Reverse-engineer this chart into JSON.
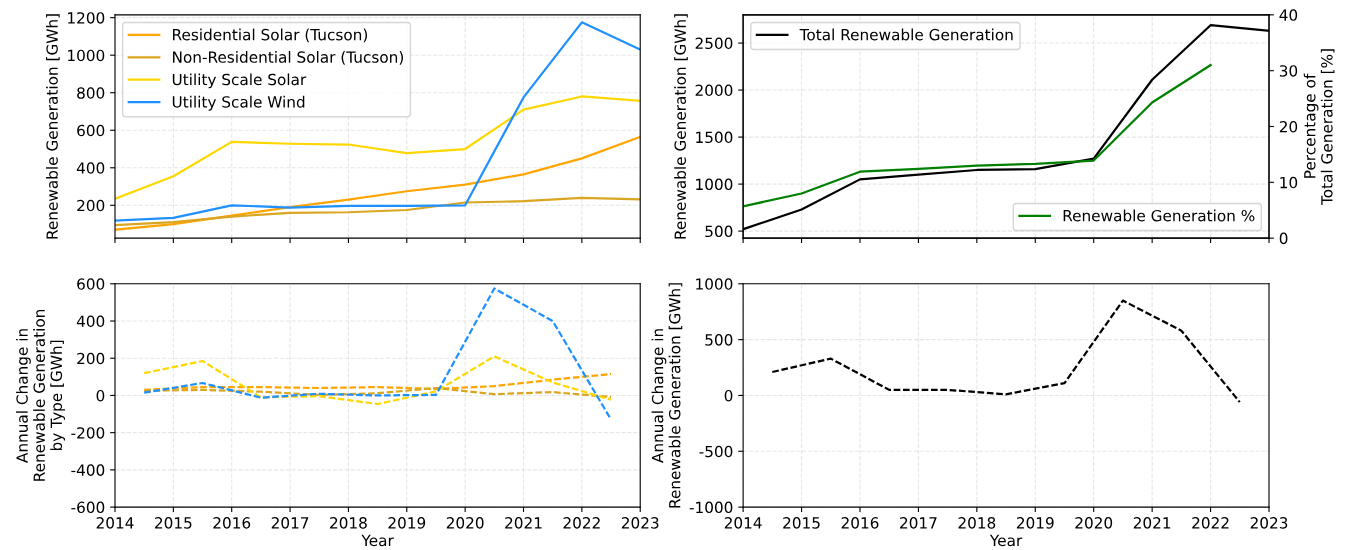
{
  "chart_data": [
    {
      "type": "line",
      "ylabel": "Renewable Generation [GWh]",
      "x": [
        2014,
        2015,
        2016,
        2017,
        2018,
        2019,
        2020,
        2021,
        2022,
        2023
      ],
      "xlim": [
        2014,
        2023
      ],
      "xticks": [
        2014,
        2015,
        2016,
        2017,
        2018,
        2019,
        2020,
        2021,
        2022,
        2023
      ],
      "ylim": [
        25,
        1215
      ],
      "yticks": [
        200,
        400,
        600,
        800,
        1000,
        1200
      ],
      "tick_labels": "y",
      "grid": true,
      "legend": "top left",
      "line_style": "solid",
      "series": [
        {
          "name": "Residential Solar (Tucson)",
          "color": "#ffa500",
          "values": [
            70,
            100,
            145,
            190,
            230,
            275,
            310,
            365,
            450,
            565
          ]
        },
        {
          "name": "Non-Residential Solar (Tucson)",
          "color": "#daa520",
          "values": [
            95,
            110,
            140,
            160,
            163,
            175,
            215,
            222,
            240,
            232
          ]
        },
        {
          "name": "Utility Scale Solar",
          "color": "#ffd700",
          "values": [
            235,
            355,
            538,
            528,
            524,
            478,
            500,
            710,
            780,
            757
          ]
        },
        {
          "name": "Utility Scale Wind",
          "color": "#1e90ff",
          "values": [
            118,
            133,
            200,
            188,
            197,
            197,
            200,
            775,
            1175,
            1030
          ]
        }
      ]
    },
    {
      "type": "line",
      "ylabel": "Renewable Generation [GWh]",
      "y2label": "Percentage of\nTotal Generation [%]",
      "x": [
        2014,
        2015,
        2016,
        2017,
        2018,
        2019,
        2020,
        2021,
        2022,
        2023
      ],
      "xlim": [
        2014,
        2023
      ],
      "xticks": [
        2014,
        2015,
        2016,
        2017,
        2018,
        2019,
        2020,
        2021,
        2022,
        2023
      ],
      "ylim": [
        425,
        2800
      ],
      "yticks": [
        500,
        1000,
        1500,
        2000,
        2500
      ],
      "y2lim": [
        0,
        40
      ],
      "y2ticks": [
        0,
        10,
        20,
        30,
        40
      ],
      "tick_labels": "y",
      "grid": true,
      "legend": "top left",
      "line_style": "solid",
      "series": [
        {
          "name": "Total Renewable Generation",
          "color": "#000000",
          "values": [
            520,
            730,
            1050,
            1100,
            1150,
            1160,
            1270,
            2110,
            2690,
            2630
          ]
        },
        {
          "name": "Renewable Generation %",
          "color": "#008000",
          "axis": "y2",
          "x": [
            2014,
            2015,
            2016,
            2017,
            2018,
            2019,
            2020,
            2021,
            2022
          ],
          "values": [
            5.7,
            8.0,
            11.9,
            12.4,
            13.0,
            13.3,
            13.9,
            24.3,
            31.0
          ]
        }
      ]
    },
    {
      "type": "line",
      "xlabel": "Year",
      "ylabel": "Annual Change in\nRenewable Generation\nby Type [GWh]",
      "x": [
        2014.5,
        2015.5,
        2016.5,
        2017.5,
        2018.5,
        2019.5,
        2020.5,
        2021.5,
        2022.5
      ],
      "xlim": [
        2014,
        2023
      ],
      "xticks": [
        2014,
        2015,
        2016,
        2017,
        2018,
        2019,
        2020,
        2021,
        2022,
        2023
      ],
      "ylim": [
        -600,
        600
      ],
      "yticks": [
        -600,
        -400,
        -200,
        0,
        200,
        400,
        600
      ],
      "grid": true,
      "line_style": "dashed",
      "series": [
        {
          "color": "#ffa500",
          "values": [
            30,
            45,
            45,
            40,
            45,
            35,
            50,
            85,
            115
          ]
        },
        {
          "color": "#daa520",
          "values": [
            25,
            30,
            20,
            3,
            12,
            40,
            7,
            18,
            -8
          ]
        },
        {
          "color": "#ffd700",
          "values": [
            120,
            185,
            -10,
            -4,
            -46,
            22,
            210,
            70,
            -23
          ]
        },
        {
          "color": "#1e90ff",
          "values": [
            15,
            67,
            -12,
            9,
            0,
            3,
            575,
            400,
            -130
          ]
        }
      ]
    },
    {
      "type": "line",
      "xlabel": "Year",
      "ylabel": "Annual Change in\nRenewable Generation [GWh]",
      "x": [
        2014.5,
        2015.5,
        2016.5,
        2017.5,
        2018.5,
        2019.5,
        2020.5,
        2021.5,
        2022.5
      ],
      "xlim": [
        2014,
        2023
      ],
      "xticks": [
        2014,
        2015,
        2016,
        2017,
        2018,
        2019,
        2020,
        2021,
        2022,
        2023
      ],
      "ylim": [
        -1000,
        1000
      ],
      "yticks": [
        -1000,
        -500,
        0,
        500,
        1000
      ],
      "grid": true,
      "line_style": "dashed",
      "series": [
        {
          "color": "#000000",
          "values": [
            210,
            330,
            50,
            50,
            10,
            110,
            850,
            580,
            -60
          ]
        }
      ]
    }
  ]
}
